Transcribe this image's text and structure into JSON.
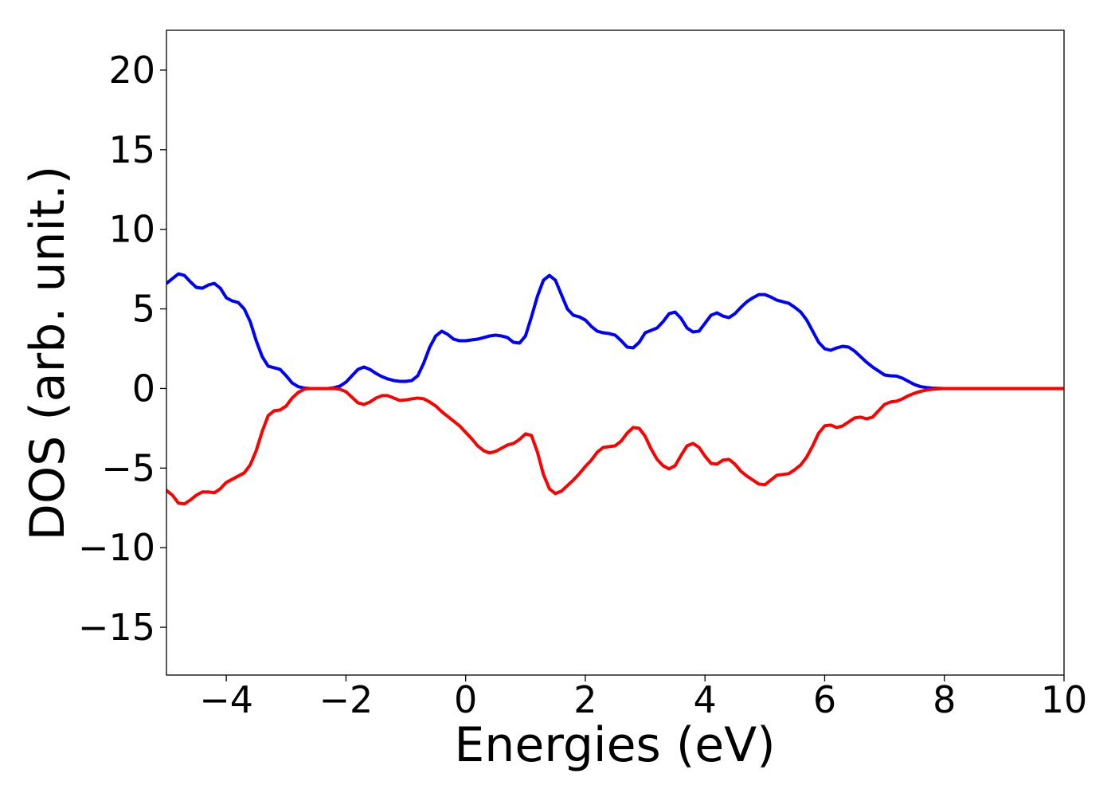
{
  "chart_data": {
    "type": "line",
    "title": "",
    "xlabel": "Energies (eV)",
    "ylabel": "DOS (arb. unit.)",
    "xlim": [
      -5,
      10
    ],
    "ylim": [
      -18,
      22.5
    ],
    "xticks": [
      -4,
      -2,
      0,
      2,
      4,
      6,
      8,
      10
    ],
    "xtick_labels": [
      "−4",
      "−2",
      "0",
      "2",
      "4",
      "6",
      "8",
      "10"
    ],
    "yticks": [
      -15,
      -10,
      -5,
      0,
      5,
      10,
      15,
      20
    ],
    "ytick_labels": [
      "−15",
      "−10",
      "−5",
      "0",
      "5",
      "10",
      "15",
      "20"
    ],
    "grid": false,
    "legend": "none",
    "series": [
      {
        "color": "#0000ff",
        "points": [
          [
            -5.0,
            6.6
          ],
          [
            -4.9,
            6.9
          ],
          [
            -4.8,
            7.2
          ],
          [
            -4.7,
            7.1
          ],
          [
            -4.6,
            6.7
          ],
          [
            -4.5,
            6.35
          ],
          [
            -4.4,
            6.3
          ],
          [
            -4.3,
            6.5
          ],
          [
            -4.2,
            6.6
          ],
          [
            -4.1,
            6.3
          ],
          [
            -4.0,
            5.7
          ],
          [
            -3.9,
            5.5
          ],
          [
            -3.8,
            5.4
          ],
          [
            -3.7,
            5.0
          ],
          [
            -3.6,
            4.2
          ],
          [
            -3.5,
            3.0
          ],
          [
            -3.4,
            2.0
          ],
          [
            -3.3,
            1.4
          ],
          [
            -3.2,
            1.3
          ],
          [
            -3.1,
            1.2
          ],
          [
            -3.0,
            0.8
          ],
          [
            -2.9,
            0.35
          ],
          [
            -2.8,
            0.12
          ],
          [
            -2.7,
            0.03
          ],
          [
            -2.6,
            0.0
          ],
          [
            -2.5,
            0.0
          ],
          [
            -2.4,
            0.0
          ],
          [
            -2.3,
            0.0
          ],
          [
            -2.2,
            0.05
          ],
          [
            -2.1,
            0.15
          ],
          [
            -2.0,
            0.4
          ],
          [
            -1.9,
            0.8
          ],
          [
            -1.8,
            1.2
          ],
          [
            -1.7,
            1.35
          ],
          [
            -1.6,
            1.2
          ],
          [
            -1.5,
            0.95
          ],
          [
            -1.4,
            0.75
          ],
          [
            -1.3,
            0.6
          ],
          [
            -1.2,
            0.5
          ],
          [
            -1.1,
            0.45
          ],
          [
            -1.0,
            0.45
          ],
          [
            -0.9,
            0.5
          ],
          [
            -0.8,
            0.8
          ],
          [
            -0.7,
            1.6
          ],
          [
            -0.6,
            2.6
          ],
          [
            -0.5,
            3.3
          ],
          [
            -0.4,
            3.6
          ],
          [
            -0.3,
            3.4
          ],
          [
            -0.2,
            3.1
          ],
          [
            -0.1,
            3.0
          ],
          [
            0.0,
            3.0
          ],
          [
            0.1,
            3.05
          ],
          [
            0.2,
            3.1
          ],
          [
            0.3,
            3.2
          ],
          [
            0.4,
            3.3
          ],
          [
            0.5,
            3.35
          ],
          [
            0.6,
            3.3
          ],
          [
            0.7,
            3.2
          ],
          [
            0.8,
            2.9
          ],
          [
            0.9,
            2.85
          ],
          [
            1.0,
            3.3
          ],
          [
            1.1,
            4.5
          ],
          [
            1.2,
            5.8
          ],
          [
            1.3,
            6.8
          ],
          [
            1.4,
            7.1
          ],
          [
            1.5,
            6.8
          ],
          [
            1.6,
            5.9
          ],
          [
            1.7,
            5.0
          ],
          [
            1.8,
            4.6
          ],
          [
            1.9,
            4.5
          ],
          [
            2.0,
            4.3
          ],
          [
            2.1,
            3.9
          ],
          [
            2.2,
            3.6
          ],
          [
            2.3,
            3.5
          ],
          [
            2.4,
            3.45
          ],
          [
            2.5,
            3.35
          ],
          [
            2.6,
            3.0
          ],
          [
            2.7,
            2.6
          ],
          [
            2.8,
            2.55
          ],
          [
            2.9,
            2.9
          ],
          [
            3.0,
            3.5
          ],
          [
            3.1,
            3.65
          ],
          [
            3.2,
            3.8
          ],
          [
            3.3,
            4.2
          ],
          [
            3.4,
            4.7
          ],
          [
            3.5,
            4.8
          ],
          [
            3.6,
            4.4
          ],
          [
            3.7,
            3.8
          ],
          [
            3.8,
            3.55
          ],
          [
            3.9,
            3.6
          ],
          [
            4.0,
            4.1
          ],
          [
            4.1,
            4.6
          ],
          [
            4.2,
            4.75
          ],
          [
            4.3,
            4.55
          ],
          [
            4.4,
            4.45
          ],
          [
            4.5,
            4.7
          ],
          [
            4.6,
            5.1
          ],
          [
            4.7,
            5.45
          ],
          [
            4.8,
            5.7
          ],
          [
            4.9,
            5.9
          ],
          [
            5.0,
            5.9
          ],
          [
            5.1,
            5.75
          ],
          [
            5.2,
            5.55
          ],
          [
            5.3,
            5.45
          ],
          [
            5.4,
            5.35
          ],
          [
            5.5,
            5.1
          ],
          [
            5.6,
            4.8
          ],
          [
            5.7,
            4.3
          ],
          [
            5.8,
            3.6
          ],
          [
            5.9,
            2.9
          ],
          [
            6.0,
            2.5
          ],
          [
            6.1,
            2.4
          ],
          [
            6.2,
            2.55
          ],
          [
            6.3,
            2.65
          ],
          [
            6.4,
            2.6
          ],
          [
            6.5,
            2.35
          ],
          [
            6.6,
            2.0
          ],
          [
            6.7,
            1.65
          ],
          [
            6.8,
            1.35
          ],
          [
            6.9,
            1.1
          ],
          [
            7.0,
            0.85
          ],
          [
            7.1,
            0.8
          ],
          [
            7.2,
            0.78
          ],
          [
            7.3,
            0.65
          ],
          [
            7.4,
            0.45
          ],
          [
            7.5,
            0.25
          ],
          [
            7.6,
            0.12
          ],
          [
            7.7,
            0.06
          ],
          [
            7.8,
            0.02
          ],
          [
            7.9,
            0.01
          ],
          [
            8.0,
            0.0
          ],
          [
            8.5,
            0.0
          ],
          [
            9.0,
            0.0
          ],
          [
            9.5,
            0.0
          ],
          [
            10.0,
            0.0
          ]
        ]
      },
      {
        "color": "#ff0000",
        "points": [
          [
            -5.0,
            -6.4
          ],
          [
            -4.9,
            -6.7
          ],
          [
            -4.8,
            -7.2
          ],
          [
            -4.7,
            -7.25
          ],
          [
            -4.6,
            -7.0
          ],
          [
            -4.5,
            -6.7
          ],
          [
            -4.4,
            -6.5
          ],
          [
            -4.3,
            -6.5
          ],
          [
            -4.2,
            -6.55
          ],
          [
            -4.1,
            -6.3
          ],
          [
            -4.0,
            -5.9
          ],
          [
            -3.9,
            -5.7
          ],
          [
            -3.8,
            -5.5
          ],
          [
            -3.7,
            -5.3
          ],
          [
            -3.6,
            -4.8
          ],
          [
            -3.5,
            -3.9
          ],
          [
            -3.4,
            -2.7
          ],
          [
            -3.3,
            -1.7
          ],
          [
            -3.2,
            -1.4
          ],
          [
            -3.1,
            -1.35
          ],
          [
            -3.0,
            -1.1
          ],
          [
            -2.9,
            -0.6
          ],
          [
            -2.8,
            -0.25
          ],
          [
            -2.7,
            -0.05
          ],
          [
            -2.6,
            0.0
          ],
          [
            -2.5,
            0.0
          ],
          [
            -2.4,
            0.0
          ],
          [
            -2.3,
            0.0
          ],
          [
            -2.2,
            0.0
          ],
          [
            -2.1,
            -0.05
          ],
          [
            -2.0,
            -0.2
          ],
          [
            -1.9,
            -0.55
          ],
          [
            -1.8,
            -0.9
          ],
          [
            -1.7,
            -1.0
          ],
          [
            -1.6,
            -0.85
          ],
          [
            -1.5,
            -0.6
          ],
          [
            -1.4,
            -0.45
          ],
          [
            -1.3,
            -0.45
          ],
          [
            -1.2,
            -0.6
          ],
          [
            -1.1,
            -0.75
          ],
          [
            -1.0,
            -0.72
          ],
          [
            -0.9,
            -0.65
          ],
          [
            -0.8,
            -0.6
          ],
          [
            -0.7,
            -0.65
          ],
          [
            -0.6,
            -0.85
          ],
          [
            -0.5,
            -1.1
          ],
          [
            -0.4,
            -1.45
          ],
          [
            -0.3,
            -1.75
          ],
          [
            -0.2,
            -2.05
          ],
          [
            -0.1,
            -2.35
          ],
          [
            0.0,
            -2.75
          ],
          [
            0.1,
            -3.15
          ],
          [
            0.2,
            -3.6
          ],
          [
            0.3,
            -3.9
          ],
          [
            0.4,
            -4.05
          ],
          [
            0.5,
            -3.95
          ],
          [
            0.6,
            -3.75
          ],
          [
            0.7,
            -3.55
          ],
          [
            0.8,
            -3.45
          ],
          [
            0.9,
            -3.2
          ],
          [
            1.0,
            -2.85
          ],
          [
            1.1,
            -2.95
          ],
          [
            1.2,
            -4.0
          ],
          [
            1.3,
            -5.4
          ],
          [
            1.4,
            -6.3
          ],
          [
            1.5,
            -6.6
          ],
          [
            1.6,
            -6.45
          ],
          [
            1.7,
            -6.1
          ],
          [
            1.8,
            -5.75
          ],
          [
            1.9,
            -5.35
          ],
          [
            2.0,
            -4.9
          ],
          [
            2.1,
            -4.5
          ],
          [
            2.2,
            -4.0
          ],
          [
            2.3,
            -3.7
          ],
          [
            2.4,
            -3.65
          ],
          [
            2.5,
            -3.6
          ],
          [
            2.6,
            -3.3
          ],
          [
            2.7,
            -2.8
          ],
          [
            2.8,
            -2.45
          ],
          [
            2.9,
            -2.5
          ],
          [
            3.0,
            -3.0
          ],
          [
            3.1,
            -3.8
          ],
          [
            3.2,
            -4.45
          ],
          [
            3.3,
            -4.85
          ],
          [
            3.4,
            -5.05
          ],
          [
            3.5,
            -4.85
          ],
          [
            3.6,
            -4.2
          ],
          [
            3.7,
            -3.6
          ],
          [
            3.8,
            -3.45
          ],
          [
            3.9,
            -3.7
          ],
          [
            4.0,
            -4.25
          ],
          [
            4.1,
            -4.7
          ],
          [
            4.2,
            -4.75
          ],
          [
            4.3,
            -4.5
          ],
          [
            4.4,
            -4.45
          ],
          [
            4.5,
            -4.75
          ],
          [
            4.6,
            -5.2
          ],
          [
            4.7,
            -5.5
          ],
          [
            4.8,
            -5.75
          ],
          [
            4.9,
            -6.0
          ],
          [
            5.0,
            -6.05
          ],
          [
            5.1,
            -5.75
          ],
          [
            5.2,
            -5.45
          ],
          [
            5.3,
            -5.4
          ],
          [
            5.4,
            -5.35
          ],
          [
            5.5,
            -5.1
          ],
          [
            5.6,
            -4.8
          ],
          [
            5.7,
            -4.3
          ],
          [
            5.8,
            -3.6
          ],
          [
            5.9,
            -2.8
          ],
          [
            6.0,
            -2.35
          ],
          [
            6.1,
            -2.3
          ],
          [
            6.2,
            -2.45
          ],
          [
            6.3,
            -2.35
          ],
          [
            6.4,
            -2.1
          ],
          [
            6.5,
            -1.85
          ],
          [
            6.6,
            -1.8
          ],
          [
            6.7,
            -1.9
          ],
          [
            6.8,
            -1.8
          ],
          [
            6.9,
            -1.4
          ],
          [
            7.0,
            -1.0
          ],
          [
            7.1,
            -0.85
          ],
          [
            7.2,
            -0.8
          ],
          [
            7.3,
            -0.65
          ],
          [
            7.4,
            -0.45
          ],
          [
            7.5,
            -0.3
          ],
          [
            7.6,
            -0.18
          ],
          [
            7.7,
            -0.1
          ],
          [
            7.8,
            -0.05
          ],
          [
            7.9,
            -0.02
          ],
          [
            8.0,
            0.0
          ],
          [
            8.5,
            0.0
          ],
          [
            9.0,
            0.0
          ],
          [
            9.5,
            0.0
          ],
          [
            10.0,
            0.0
          ]
        ]
      }
    ]
  }
}
